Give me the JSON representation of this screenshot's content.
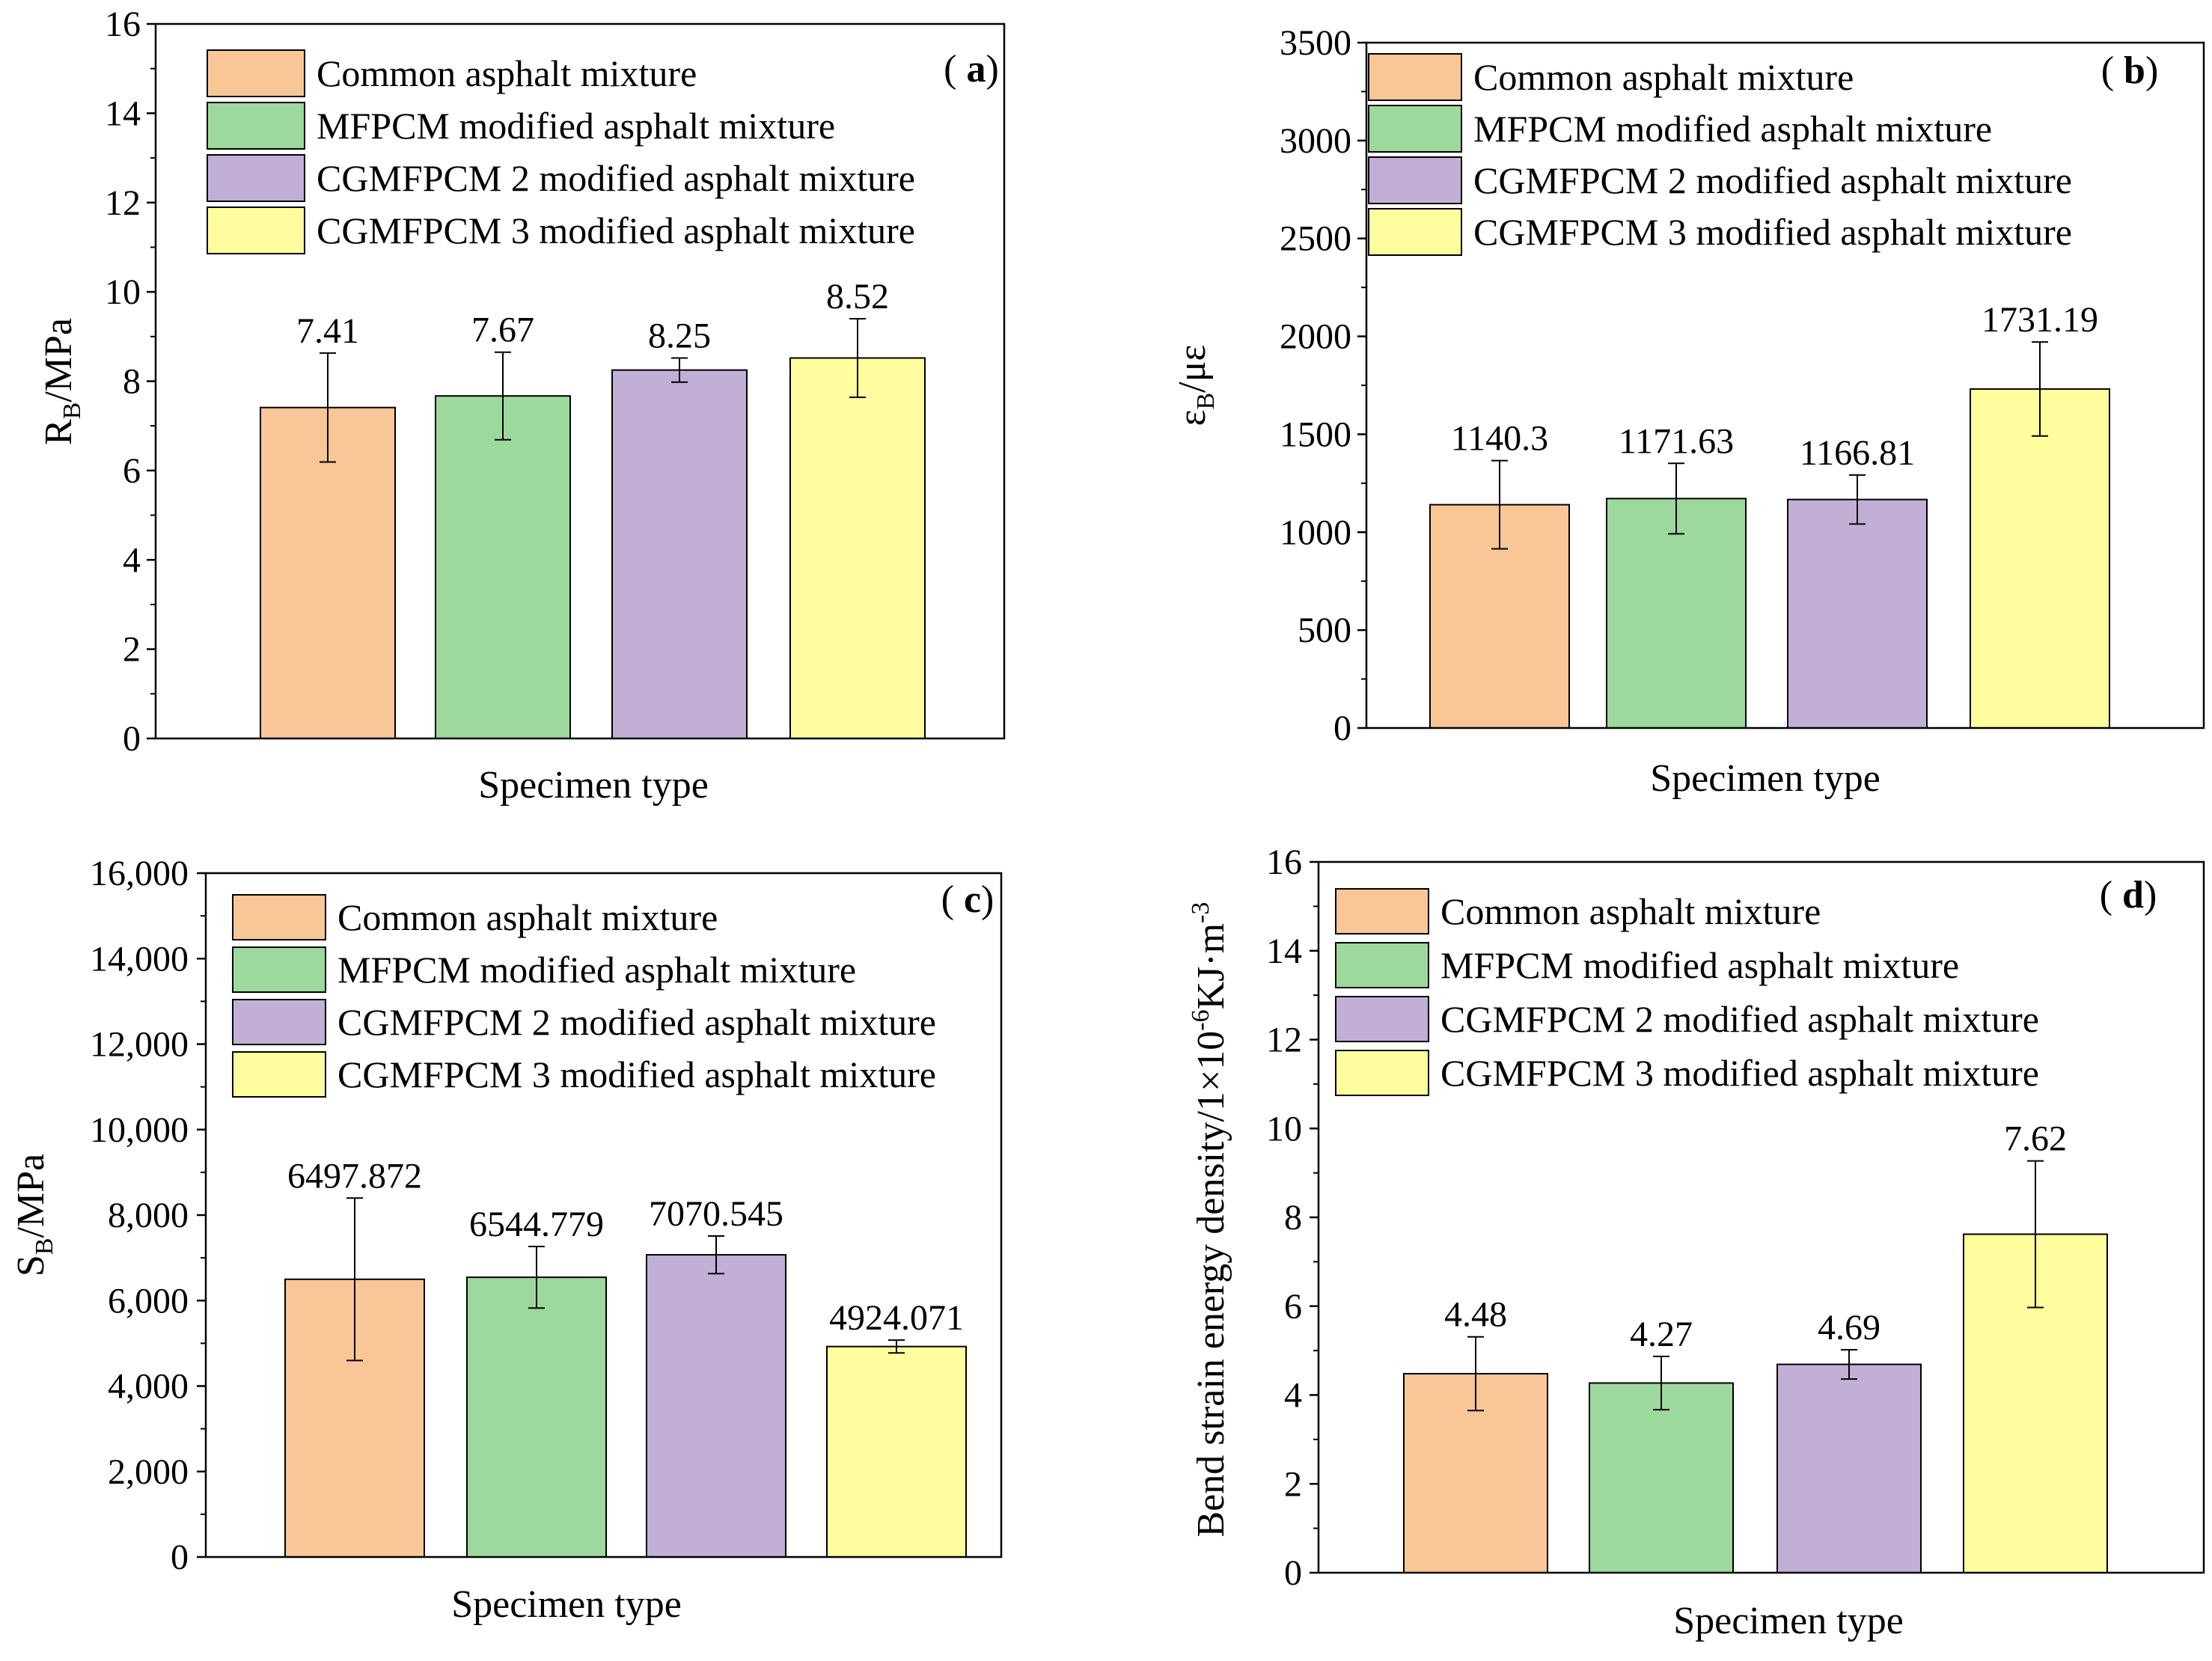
{
  "legend_entries": [
    "Common asphalt mixture",
    "MFPCM modified asphalt mixture",
    "CGMFPCM 2 modified asphalt mixture",
    "CGMFPCM 3 modified asphalt mixture"
  ],
  "colors": [
    "#F9C697",
    "#9DD89C",
    "#C1AFD6",
    "#FFFD9D"
  ],
  "chart_data": [
    {
      "type": "bar",
      "panel": "a",
      "panel_label": "a",
      "xlabel": "Specimen type",
      "ylabel": "R",
      "ylabel_sub": "B",
      "ylabel_suffix": "/MPa",
      "ylim": [
        0,
        16
      ],
      "yticks": [
        0,
        2,
        4,
        6,
        8,
        10,
        12,
        14,
        16
      ],
      "ytick_labels": [
        "0",
        "2",
        "4",
        "6",
        "8",
        "10",
        "12",
        "14",
        "16"
      ],
      "values": [
        7.41,
        7.67,
        8.25,
        8.52
      ],
      "value_labels": [
        "7.41",
        "7.67",
        "8.25",
        "8.52"
      ],
      "errors": [
        1.22,
        0.98,
        0.27,
        0.88
      ],
      "legend_position": "top-left"
    },
    {
      "type": "bar",
      "panel": "b",
      "panel_label": "b",
      "xlabel": "Specimen type",
      "ylabel": "ε",
      "ylabel_sub": "B",
      "ylabel_suffix": "/με",
      "ylim": [
        0,
        3500
      ],
      "yticks": [
        0,
        500,
        1000,
        1500,
        2000,
        2500,
        3000,
        3500
      ],
      "ytick_labels": [
        "0",
        "500",
        "1000",
        "1500",
        "2000",
        "2500",
        "3000",
        "3500"
      ],
      "values": [
        1140.3,
        1171.63,
        1166.81,
        1731.19
      ],
      "value_labels": [
        "1140.3",
        "1171.63",
        "1166.81",
        "1731.19"
      ],
      "errors": [
        225,
        180,
        125,
        240
      ],
      "legend_position": "top-left"
    },
    {
      "type": "bar",
      "panel": "c",
      "panel_label": "c",
      "xlabel": "Specimen type",
      "ylabel": "S",
      "ylabel_sub": "B",
      "ylabel_suffix": "/MPa",
      "ylim": [
        0,
        16000
      ],
      "yticks": [
        0,
        2000,
        4000,
        6000,
        8000,
        10000,
        12000,
        14000,
        16000
      ],
      "ytick_labels": [
        "0",
        "2,000",
        "4,000",
        "6,000",
        "8,000",
        "10,000",
        "12,000",
        "14,000",
        "16,000"
      ],
      "values": [
        6497.872,
        6544.779,
        7070.545,
        4924.071
      ],
      "value_labels": [
        "6497.872",
        "6544.779",
        "7070.545",
        "4924.071"
      ],
      "errors": [
        1900,
        720,
        440,
        150
      ],
      "legend_position": "top-left"
    },
    {
      "type": "bar",
      "panel": "d",
      "panel_label": "d",
      "xlabel": "Specimen type",
      "ylabel": "Bend strain energy density/1×10",
      "ylabel_sup": "-6",
      "ylabel_mid": "KJ·m",
      "ylabel_sup2": "-3",
      "ylim": [
        0,
        16
      ],
      "yticks": [
        0,
        2,
        4,
        6,
        8,
        10,
        12,
        14,
        16
      ],
      "ytick_labels": [
        "0",
        "2",
        "4",
        "6",
        "8",
        "10",
        "12",
        "14",
        "16"
      ],
      "values": [
        4.48,
        4.27,
        4.69,
        7.62
      ],
      "value_labels": [
        "4.48",
        "4.27",
        "4.69",
        "7.62"
      ],
      "errors": [
        0.83,
        0.6,
        0.33,
        1.65
      ],
      "legend_position": "top-left"
    }
  ]
}
